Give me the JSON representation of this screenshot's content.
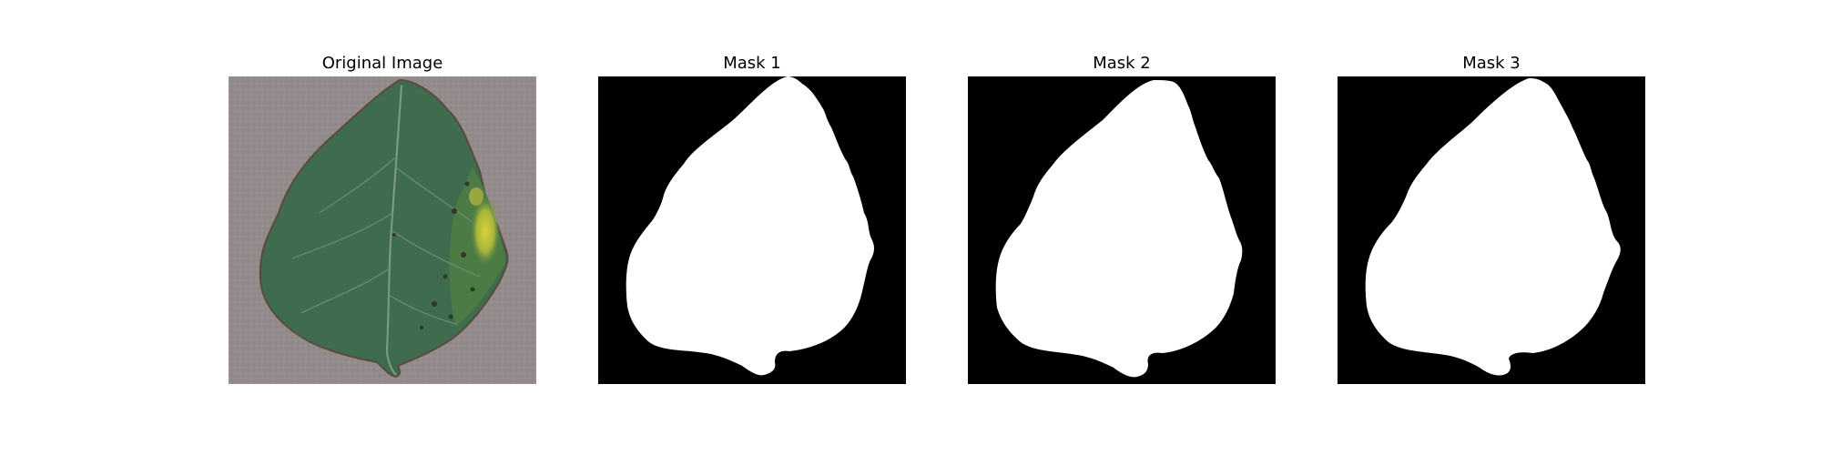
{
  "figure": {
    "panels": [
      {
        "title": "Original Image",
        "kind": "photo"
      },
      {
        "title": "Mask 1",
        "kind": "mask"
      },
      {
        "title": "Mask 2",
        "kind": "mask"
      },
      {
        "title": "Mask 3",
        "kind": "mask"
      }
    ]
  },
  "colors": {
    "background": "#ffffff",
    "mask_background": "#000000",
    "mask_foreground": "#ffffff",
    "photo_surface": "#938a8b",
    "leaf_green": "#3d6a4d",
    "leaf_vein": "#7f9d8a",
    "disease_yellow": "#c7c23a",
    "leaf_edge": "#5a4b3c"
  }
}
